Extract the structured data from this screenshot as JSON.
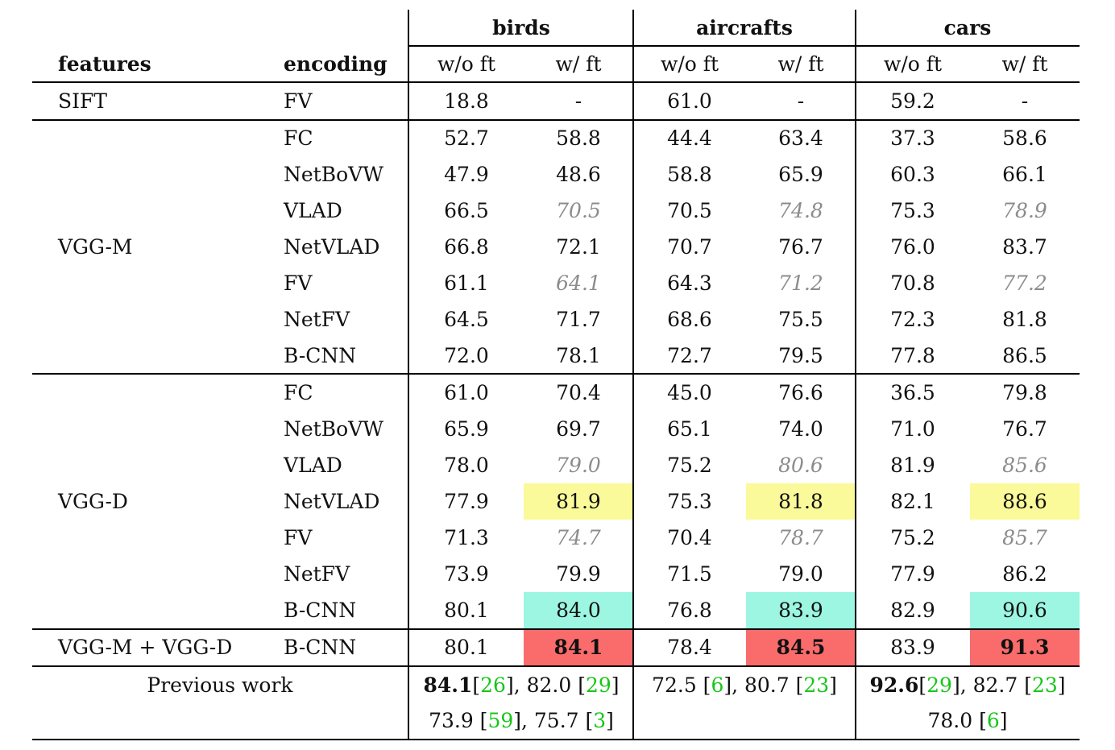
{
  "headers": {
    "features": "features",
    "encoding": "encoding",
    "groups": [
      "birds",
      "aircrafts",
      "cars"
    ],
    "subcols": [
      "w/o ft",
      "w/ ft",
      "w/o ft",
      "w/ ft",
      "w/o ft",
      "w/ ft"
    ]
  },
  "rows": [
    {
      "features": "SIFT",
      "encoding": "FV",
      "values": [
        "18.8",
        "-",
        "61.0",
        "-",
        "59.2",
        "-"
      ],
      "styles": [
        "",
        "",
        "",
        "",
        "",
        ""
      ]
    },
    {
      "features": "",
      "encoding": "FC",
      "values": [
        "52.7",
        "58.8",
        "44.4",
        "63.4",
        "37.3",
        "58.6"
      ],
      "styles": [
        "",
        "",
        "",
        "",
        "",
        ""
      ]
    },
    {
      "features": "",
      "encoding": "NetBoVW",
      "values": [
        "47.9",
        "48.6",
        "58.8",
        "65.9",
        "60.3",
        "66.1"
      ],
      "styles": [
        "",
        "",
        "",
        "",
        "",
        ""
      ]
    },
    {
      "features": "",
      "encoding": "VLAD",
      "values": [
        "66.5",
        "70.5",
        "70.5",
        "74.8",
        "75.3",
        "78.9"
      ],
      "styles": [
        "",
        "gray",
        "",
        "gray",
        "",
        "gray"
      ]
    },
    {
      "features": "VGG-M",
      "encoding": "NetVLAD",
      "values": [
        "66.8",
        "72.1",
        "70.7",
        "76.7",
        "76.0",
        "83.7"
      ],
      "styles": [
        "",
        "",
        "",
        "",
        "",
        ""
      ]
    },
    {
      "features": "",
      "encoding": "FV",
      "values": [
        "61.1",
        "64.1",
        "64.3",
        "71.2",
        "70.8",
        "77.2"
      ],
      "styles": [
        "",
        "gray",
        "",
        "gray",
        "",
        "gray"
      ]
    },
    {
      "features": "",
      "encoding": "NetFV",
      "values": [
        "64.5",
        "71.7",
        "68.6",
        "75.5",
        "72.3",
        "81.8"
      ],
      "styles": [
        "",
        "",
        "",
        "",
        "",
        ""
      ]
    },
    {
      "features": "",
      "encoding": "B-CNN",
      "values": [
        "72.0",
        "78.1",
        "72.7",
        "79.5",
        "77.8",
        "86.5"
      ],
      "styles": [
        "",
        "",
        "",
        "",
        "",
        ""
      ]
    },
    {
      "features": "",
      "encoding": "FC",
      "values": [
        "61.0",
        "70.4",
        "45.0",
        "76.6",
        "36.5",
        "79.8"
      ],
      "styles": [
        "",
        "",
        "",
        "",
        "",
        ""
      ]
    },
    {
      "features": "",
      "encoding": "NetBoVW",
      "values": [
        "65.9",
        "69.7",
        "65.1",
        "74.0",
        "71.0",
        "76.7"
      ],
      "styles": [
        "",
        "",
        "",
        "",
        "",
        ""
      ]
    },
    {
      "features": "",
      "encoding": "VLAD",
      "values": [
        "78.0",
        "79.0",
        "75.2",
        "80.6",
        "81.9",
        "85.6"
      ],
      "styles": [
        "",
        "gray",
        "",
        "gray",
        "",
        "gray"
      ]
    },
    {
      "features": "VGG-D",
      "encoding": "NetVLAD",
      "values": [
        "77.9",
        "81.9",
        "75.3",
        "81.8",
        "82.1",
        "88.6"
      ],
      "styles": [
        "",
        "hl-yellow",
        "",
        "hl-yellow",
        "",
        "hl-yellow"
      ]
    },
    {
      "features": "",
      "encoding": "FV",
      "values": [
        "71.3",
        "74.7",
        "70.4",
        "78.7",
        "75.2",
        "85.7"
      ],
      "styles": [
        "",
        "gray",
        "",
        "gray",
        "",
        "gray"
      ]
    },
    {
      "features": "",
      "encoding": "NetFV",
      "values": [
        "73.9",
        "79.9",
        "71.5",
        "79.0",
        "77.9",
        "86.2"
      ],
      "styles": [
        "",
        "",
        "",
        "",
        "",
        ""
      ]
    },
    {
      "features": "",
      "encoding": "B-CNN",
      "values": [
        "80.1",
        "84.0",
        "76.8",
        "83.9",
        "82.9",
        "90.6"
      ],
      "styles": [
        "",
        "hl-cyan",
        "",
        "hl-cyan",
        "",
        "hl-cyan"
      ]
    },
    {
      "features": "VGG-M + VGG-D",
      "encoding": "B-CNN",
      "values": [
        "80.1",
        "84.1",
        "78.4",
        "84.5",
        "83.9",
        "91.3"
      ],
      "styles": [
        "",
        "hl-red bold",
        "",
        "hl-red bold",
        "",
        "hl-red bold"
      ]
    }
  ],
  "previous_work": {
    "label": "Previous work",
    "birds": [
      [
        {
          "t": "84.1",
          "b": true
        },
        {
          "t": " ["
        },
        {
          "t": "26",
          "r": true
        },
        {
          "t": "], 82.0 ["
        },
        {
          "t": "29",
          "r": true
        },
        {
          "t": "]"
        }
      ],
      [
        {
          "t": "73.9 ["
        },
        {
          "t": "59",
          "r": true
        },
        {
          "t": "], 75.7 ["
        },
        {
          "t": "3",
          "r": true
        },
        {
          "t": "]"
        }
      ]
    ],
    "aircrafts": [
      [
        {
          "t": "72.5 ["
        },
        {
          "t": "6",
          "r": true
        },
        {
          "t": "], 80.7 ["
        },
        {
          "t": "23",
          "r": true
        },
        {
          "t": "]"
        }
      ]
    ],
    "cars": [
      [
        {
          "t": "92.6",
          "b": true
        },
        {
          "t": " ["
        },
        {
          "t": "29",
          "r": true
        },
        {
          "t": "], 82.7 ["
        },
        {
          "t": "23",
          "r": true
        },
        {
          "t": "]"
        }
      ],
      [
        {
          "t": "78.0 ["
        },
        {
          "t": "6",
          "r": true
        },
        {
          "t": "]"
        }
      ]
    ]
  },
  "colors": {
    "highlight_yellow": "#fafa9a",
    "highlight_cyan": "#9cf6e2",
    "highlight_red": "#fa6b6b",
    "reference_green": "#17c617",
    "gray_text": "#8c8c8c"
  }
}
